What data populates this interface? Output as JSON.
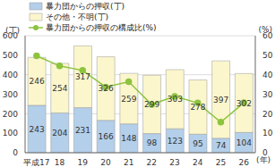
{
  "chart_data": {
    "type": "bar",
    "stacked": true,
    "data_labels": true,
    "grid": true,
    "legend": "top-left",
    "categories": [
      "平成17",
      "18",
      "19",
      "20",
      "21",
      "22",
      "23",
      "24",
      "25",
      "26"
    ],
    "xlabel": "(年)",
    "ylabel": "(丁)",
    "y2label": "(%)",
    "ylim": [
      0,
      600
    ],
    "yticks": [
      0,
      100,
      200,
      300,
      400,
      500,
      600
    ],
    "y2lim": [
      0,
      60
    ],
    "y2ticks": [
      0,
      10,
      20,
      30,
      40,
      50,
      60
    ],
    "series": [
      {
        "name": "暴力団からの押収(丁)",
        "type": "bar",
        "color": "#b3cfea",
        "values": [
          243,
          204,
          231,
          166,
          148,
          98,
          123,
          95,
          74,
          104
        ]
      },
      {
        "name": "その他・不明(丁)",
        "type": "bar",
        "color": "#fbf6cc",
        "values": [
          246,
          254,
          317,
          326,
          259,
          299,
          303,
          278,
          397,
          302
        ]
      },
      {
        "name": "暴力団からの押収の構成比(%)",
        "type": "line",
        "axis": "y2",
        "color": "#8dc43f",
        "marker": "circle",
        "line_style": "solid",
        "values": [
          49.7,
          44.5,
          42.2,
          33.7,
          36.4,
          24.7,
          28.9,
          25.5,
          15.7,
          25.6
        ]
      }
    ]
  }
}
